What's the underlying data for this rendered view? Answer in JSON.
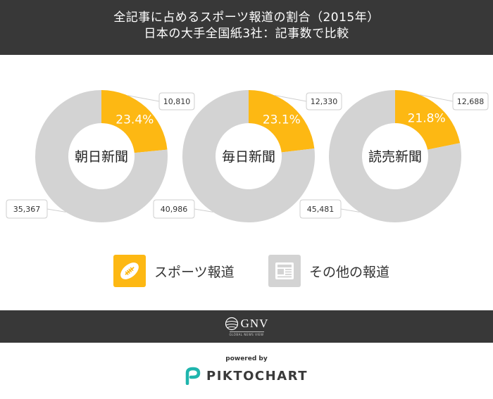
{
  "header": {
    "title_line1": "全記事に占めるスポーツ報道の割合（2015年）",
    "title_line2": "日本の大手全国紙3社：記事数で比較"
  },
  "chart_data": [
    {
      "type": "pie",
      "center_label": "朝日新聞",
      "percent_label": "23.4%",
      "slices": [
        {
          "name": "スポーツ報道",
          "value": 10810,
          "label": "10,810",
          "color": "#fdb813"
        },
        {
          "name": "その他の報道",
          "value": 35367,
          "label": "35,367",
          "color": "#d3d3d3"
        }
      ]
    },
    {
      "type": "pie",
      "center_label": "毎日新聞",
      "percent_label": "23.1%",
      "slices": [
        {
          "name": "スポーツ報道",
          "value": 12330,
          "label": "12,330",
          "color": "#fdb813"
        },
        {
          "name": "その他の報道",
          "value": 40986,
          "label": "40,986",
          "color": "#d3d3d3"
        }
      ]
    },
    {
      "type": "pie",
      "center_label": "読売新聞",
      "percent_label": "21.8%",
      "slices": [
        {
          "name": "スポーツ報道",
          "value": 12688,
          "label": "12,688",
          "color": "#fdb813"
        },
        {
          "name": "その他の報道",
          "value": 45481,
          "label": "45,481",
          "color": "#d3d3d3"
        }
      ]
    }
  ],
  "legend": {
    "sports": {
      "label": "スポーツ報道",
      "icon": "football-icon",
      "color": "#fdb813"
    },
    "other": {
      "label": "その他の報道",
      "icon": "newspaper-icon",
      "color": "#d3d3d3"
    }
  },
  "footer": {
    "logo_text": "GNV",
    "logo_tagline": "GLOBAL NEWS VIEW",
    "powered_by": "powered by",
    "brand": "PIKTOCHART"
  }
}
